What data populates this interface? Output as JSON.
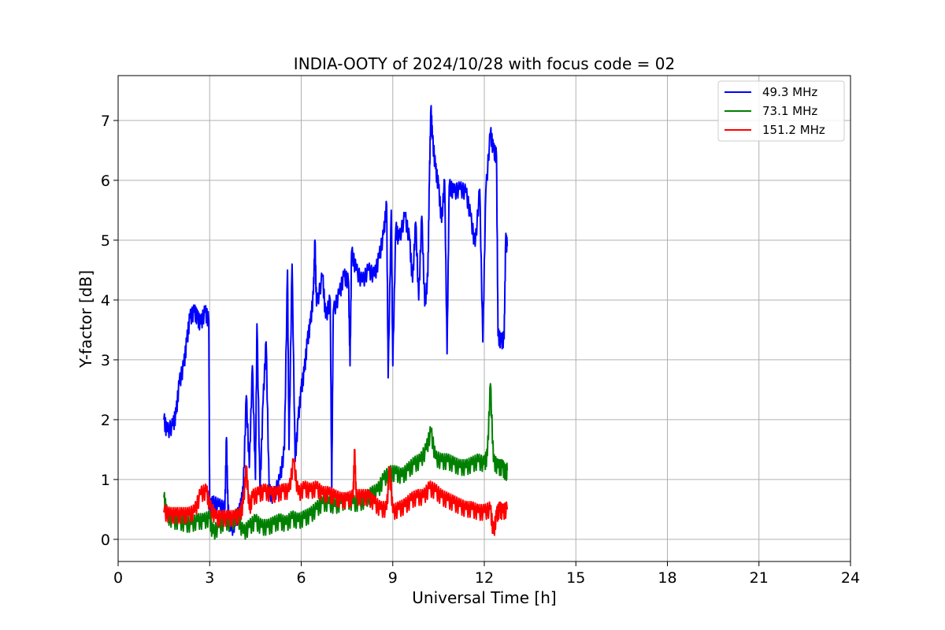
{
  "chart_data": {
    "type": "line",
    "title": "INDIA-OOTY of 2024/10/28 with focus code = 02",
    "xlabel": "Universal Time [h]",
    "ylabel": "Y-factor [dB]",
    "xlim": [
      0,
      24
    ],
    "ylim": [
      -0.37,
      7.75
    ],
    "xticks": [
      0,
      3,
      6,
      9,
      12,
      15,
      18,
      21,
      24
    ],
    "yticks": [
      0,
      1,
      2,
      3,
      4,
      5,
      6,
      7
    ],
    "grid": true,
    "legend_position": "top-right",
    "series": [
      {
        "name": "49.3 MHz",
        "color": "#0000ff",
        "points": [
          [
            1.5,
            2.0
          ],
          [
            1.6,
            1.8
          ],
          [
            1.8,
            1.9
          ],
          [
            1.9,
            2.1
          ],
          [
            2.0,
            2.6
          ],
          [
            2.15,
            2.9
          ],
          [
            2.25,
            3.3
          ],
          [
            2.35,
            3.7
          ],
          [
            2.5,
            3.8
          ],
          [
            2.6,
            3.7
          ],
          [
            2.7,
            3.6
          ],
          [
            2.85,
            3.8
          ],
          [
            2.97,
            3.65
          ],
          [
            3.0,
            0.5
          ],
          [
            3.1,
            0.6
          ],
          [
            3.3,
            0.55
          ],
          [
            3.5,
            0.5
          ],
          [
            3.55,
            1.7
          ],
          [
            3.6,
            0.5
          ],
          [
            3.7,
            0.15
          ],
          [
            3.85,
            0.3
          ],
          [
            4.0,
            0.5
          ],
          [
            4.1,
            0.8
          ],
          [
            4.2,
            2.4
          ],
          [
            4.3,
            1.2
          ],
          [
            4.4,
            2.9
          ],
          [
            4.5,
            1.0
          ],
          [
            4.55,
            3.6
          ],
          [
            4.65,
            0.8
          ],
          [
            4.75,
            2.3
          ],
          [
            4.85,
            3.3
          ],
          [
            4.95,
            0.8
          ],
          [
            5.1,
            0.7
          ],
          [
            5.3,
            1.0
          ],
          [
            5.45,
            1.5
          ],
          [
            5.55,
            4.5
          ],
          [
            5.6,
            1.5
          ],
          [
            5.7,
            4.6
          ],
          [
            5.8,
            1.3
          ],
          [
            5.9,
            2.0
          ],
          [
            6.0,
            2.5
          ],
          [
            6.1,
            2.8
          ],
          [
            6.2,
            3.3
          ],
          [
            6.3,
            3.6
          ],
          [
            6.4,
            4.1
          ],
          [
            6.45,
            5.0
          ],
          [
            6.5,
            3.9
          ],
          [
            6.7,
            4.4
          ],
          [
            6.8,
            3.7
          ],
          [
            6.95,
            4.0
          ],
          [
            7.0,
            0.8
          ],
          [
            7.05,
            3.8
          ],
          [
            7.25,
            4.1
          ],
          [
            7.4,
            4.4
          ],
          [
            7.55,
            4.3
          ],
          [
            7.6,
            2.9
          ],
          [
            7.65,
            4.8
          ],
          [
            7.8,
            4.5
          ],
          [
            8.0,
            4.3
          ],
          [
            8.2,
            4.5
          ],
          [
            8.4,
            4.4
          ],
          [
            8.55,
            4.7
          ],
          [
            8.7,
            5.1
          ],
          [
            8.8,
            5.6
          ],
          [
            8.85,
            2.7
          ],
          [
            8.95,
            5.5
          ],
          [
            9.0,
            2.9
          ],
          [
            9.1,
            5.2
          ],
          [
            9.2,
            5.0
          ],
          [
            9.4,
            5.4
          ],
          [
            9.55,
            5.0
          ],
          [
            9.65,
            4.3
          ],
          [
            9.75,
            5.3
          ],
          [
            9.85,
            4.0
          ],
          [
            9.95,
            5.4
          ],
          [
            10.05,
            3.9
          ],
          [
            10.15,
            4.4
          ],
          [
            10.2,
            6.0
          ],
          [
            10.25,
            7.2
          ],
          [
            10.3,
            6.7
          ],
          [
            10.4,
            6.2
          ],
          [
            10.5,
            5.9
          ],
          [
            10.6,
            5.3
          ],
          [
            10.7,
            6.0
          ],
          [
            10.78,
            3.1
          ],
          [
            10.85,
            5.9
          ],
          [
            11.0,
            5.8
          ],
          [
            11.2,
            5.85
          ],
          [
            11.4,
            5.8
          ],
          [
            11.55,
            5.4
          ],
          [
            11.7,
            4.9
          ],
          [
            11.85,
            5.85
          ],
          [
            11.95,
            3.3
          ],
          [
            12.05,
            5.8
          ],
          [
            12.2,
            6.8
          ],
          [
            12.3,
            6.5
          ],
          [
            12.4,
            6.4
          ],
          [
            12.45,
            3.4
          ],
          [
            12.55,
            3.3
          ],
          [
            12.65,
            3.35
          ],
          [
            12.7,
            5.0
          ],
          [
            12.75,
            4.9
          ]
        ]
      },
      {
        "name": "73.1 MHz",
        "color": "#008000",
        "points": [
          [
            1.5,
            0.7
          ],
          [
            1.6,
            0.4
          ],
          [
            1.8,
            0.3
          ],
          [
            2.0,
            0.3
          ],
          [
            2.2,
            0.25
          ],
          [
            2.4,
            0.25
          ],
          [
            2.6,
            0.3
          ],
          [
            2.8,
            0.3
          ],
          [
            3.0,
            0.35
          ],
          [
            3.1,
            0.1
          ],
          [
            3.3,
            0.2
          ],
          [
            3.5,
            0.3
          ],
          [
            3.7,
            0.25
          ],
          [
            3.9,
            0.4
          ],
          [
            4.1,
            0.1
          ],
          [
            4.3,
            0.2
          ],
          [
            4.5,
            0.3
          ],
          [
            4.7,
            0.2
          ],
          [
            4.9,
            0.2
          ],
          [
            5.1,
            0.25
          ],
          [
            5.3,
            0.3
          ],
          [
            5.5,
            0.25
          ],
          [
            5.7,
            0.35
          ],
          [
            5.9,
            0.3
          ],
          [
            6.1,
            0.35
          ],
          [
            6.3,
            0.4
          ],
          [
            6.5,
            0.5
          ],
          [
            6.7,
            0.6
          ],
          [
            6.9,
            0.6
          ],
          [
            7.1,
            0.55
          ],
          [
            7.3,
            0.6
          ],
          [
            7.5,
            0.65
          ],
          [
            7.7,
            0.6
          ],
          [
            7.9,
            0.6
          ],
          [
            8.1,
            0.65
          ],
          [
            8.3,
            0.75
          ],
          [
            8.5,
            0.8
          ],
          [
            8.7,
            1.0
          ],
          [
            8.9,
            1.1
          ],
          [
            9.1,
            1.1
          ],
          [
            9.3,
            1.05
          ],
          [
            9.5,
            1.15
          ],
          [
            9.7,
            1.25
          ],
          [
            9.9,
            1.3
          ],
          [
            10.1,
            1.5
          ],
          [
            10.25,
            1.8
          ],
          [
            10.4,
            1.35
          ],
          [
            10.6,
            1.3
          ],
          [
            10.8,
            1.3
          ],
          [
            11.0,
            1.25
          ],
          [
            11.2,
            1.2
          ],
          [
            11.4,
            1.2
          ],
          [
            11.6,
            1.25
          ],
          [
            11.8,
            1.3
          ],
          [
            12.0,
            1.25
          ],
          [
            12.1,
            1.4
          ],
          [
            12.2,
            2.6
          ],
          [
            12.3,
            1.3
          ],
          [
            12.45,
            1.2
          ],
          [
            12.6,
            1.2
          ],
          [
            12.7,
            1.1
          ],
          [
            12.75,
            1.15
          ]
        ]
      },
      {
        "name": "151.2 MHz",
        "color": "#ff0000",
        "points": [
          [
            1.5,
            0.45
          ],
          [
            1.7,
            0.4
          ],
          [
            1.9,
            0.4
          ],
          [
            2.1,
            0.4
          ],
          [
            2.3,
            0.4
          ],
          [
            2.5,
            0.45
          ],
          [
            2.7,
            0.75
          ],
          [
            2.9,
            0.8
          ],
          [
            3.0,
            0.55
          ],
          [
            3.2,
            0.35
          ],
          [
            3.4,
            0.35
          ],
          [
            3.6,
            0.35
          ],
          [
            3.8,
            0.35
          ],
          [
            4.0,
            0.4
          ],
          [
            4.1,
            0.6
          ],
          [
            4.2,
            1.2
          ],
          [
            4.3,
            0.5
          ],
          [
            4.4,
            0.7
          ],
          [
            4.6,
            0.75
          ],
          [
            4.8,
            0.8
          ],
          [
            5.0,
            0.75
          ],
          [
            5.2,
            0.75
          ],
          [
            5.4,
            0.8
          ],
          [
            5.6,
            0.8
          ],
          [
            5.75,
            1.3
          ],
          [
            5.9,
            0.75
          ],
          [
            6.1,
            0.85
          ],
          [
            6.3,
            0.8
          ],
          [
            6.5,
            0.85
          ],
          [
            6.7,
            0.75
          ],
          [
            6.9,
            0.75
          ],
          [
            7.1,
            0.7
          ],
          [
            7.3,
            0.65
          ],
          [
            7.5,
            0.65
          ],
          [
            7.7,
            0.7
          ],
          [
            7.75,
            1.5
          ],
          [
            7.8,
            0.7
          ],
          [
            8.0,
            0.7
          ],
          [
            8.2,
            0.7
          ],
          [
            8.4,
            0.6
          ],
          [
            8.6,
            0.5
          ],
          [
            8.8,
            0.5
          ],
          [
            8.9,
            1.2
          ],
          [
            9.0,
            0.45
          ],
          [
            9.2,
            0.5
          ],
          [
            9.4,
            0.55
          ],
          [
            9.6,
            0.65
          ],
          [
            9.8,
            0.7
          ],
          [
            10.0,
            0.7
          ],
          [
            10.2,
            0.85
          ],
          [
            10.4,
            0.8
          ],
          [
            10.6,
            0.7
          ],
          [
            10.8,
            0.65
          ],
          [
            11.0,
            0.6
          ],
          [
            11.2,
            0.55
          ],
          [
            11.4,
            0.5
          ],
          [
            11.6,
            0.5
          ],
          [
            11.8,
            0.45
          ],
          [
            12.0,
            0.45
          ],
          [
            12.2,
            0.5
          ],
          [
            12.3,
            0.1
          ],
          [
            12.4,
            0.4
          ],
          [
            12.5,
            0.5
          ],
          [
            12.6,
            0.45
          ],
          [
            12.75,
            0.5
          ]
        ]
      }
    ]
  }
}
